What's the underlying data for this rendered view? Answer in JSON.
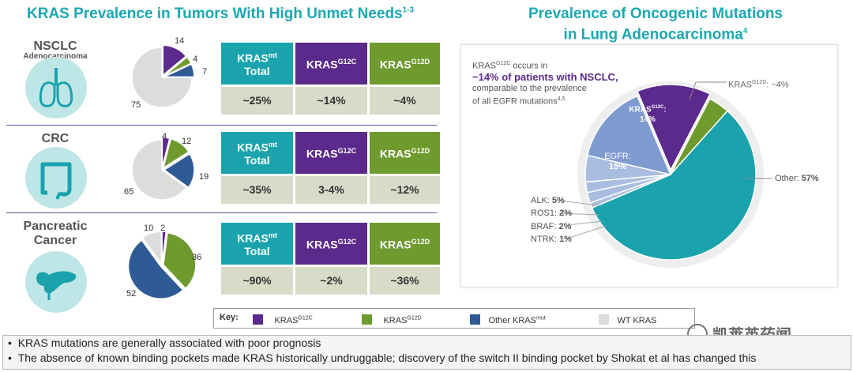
{
  "left_title": "KRAS Prevalence in Tumors With High Unmet Needs",
  "left_title_ref": "1-3",
  "right_title_line1": "Prevalence of Oncogenic Mutations",
  "right_title_line2": "in Lung Adenocarcinoma",
  "right_title_ref": "4",
  "rows": [
    {
      "label": "NSCLC",
      "sublabel": "Adenocarcinoma",
      "total": "~25%",
      "g12c": "~14%",
      "g12d": "~4%"
    },
    {
      "label": "CRC",
      "sublabel": "",
      "total": "~35%",
      "g12c": "3-4%",
      "g12d": "~12%"
    },
    {
      "label": "Pancreatic",
      "label2": "Cancer",
      "sublabel": "",
      "total": "~90%",
      "g12c": "~2%",
      "g12d": "~36%"
    }
  ],
  "headers": {
    "kras": "KRAS",
    "mt": "mt",
    "total": "Total",
    "g12c": "G12C",
    "g12d": "G12D"
  },
  "right_note": {
    "line1_pre": "KRAS",
    "line1_sup": "G12C",
    "line1_post": " occurs in",
    "line2": "~14% of patients with NSCLC,",
    "line3": "comparable to the prevalence",
    "line4": "of all EGFR mutations",
    "line4_ref": "4,5"
  },
  "lung_labels": {
    "g12d_pre": "KRAS",
    "g12d_sup": "G12D",
    "g12d_post": ": ~4%",
    "g12c_pre": "KRAS",
    "g12c_sup": "G12C",
    "g12c_post": ":",
    "g12c_val": "14%",
    "egfr": "EGFR:",
    "egfr_val": "15%",
    "other": "Other:",
    "other_val": "57%",
    "alk": "ALK:",
    "alk_val": "5%",
    "ros1": "ROS1:",
    "ros1_val": "2%",
    "braf": "BRAF:",
    "braf_val": "2%",
    "ntrk": "NTRK:",
    "ntrk_val": "1%"
  },
  "key": {
    "title": "Key:",
    "g12c_pre": "KRAS",
    "g12c_sup": "G12C",
    "g12d_pre": "KRAS",
    "g12d_sup": "G12D",
    "other_pre": "Other KRAS",
    "other_sup": "mut",
    "wt": "WT KRAS"
  },
  "bullets": [
    "KRAS mutations are generally associated with poor prognosis",
    "The absence of known binding pockets made KRAS historically undruggable; discovery of the switch II binding pocket by Shokat et al has changed this"
  ],
  "watermark": "凯莱英药闻",
  "colors": {
    "g12c": "#5b2a8c",
    "g12d": "#6e9a2e",
    "other_mut": "#2e5a95",
    "wt": "#dcdcdc",
    "egfr": "#7d9bcf",
    "minor": "#a9bde0",
    "lung_other": "#1aa3ad"
  },
  "chart_data": [
    {
      "type": "pie",
      "title": "NSCLC",
      "labels": [
        "KRAS G12C",
        "KRAS G12D",
        "Other KRAS mut",
        "WT KRAS"
      ],
      "values": [
        14,
        4,
        7,
        75
      ]
    },
    {
      "type": "pie",
      "title": "CRC",
      "labels": [
        "KRAS G12C",
        "KRAS G12D",
        "Other KRAS mut",
        "WT KRAS"
      ],
      "values": [
        4,
        12,
        19,
        65
      ]
    },
    {
      "type": "pie",
      "title": "Pancreatic Cancer",
      "labels": [
        "KRAS G12C",
        "KRAS G12D",
        "Other KRAS mut",
        "WT KRAS"
      ],
      "values": [
        2,
        36,
        52,
        10
      ]
    },
    {
      "type": "pie",
      "title": "Prevalence of Oncogenic Mutations in Lung Adenocarcinoma",
      "labels": [
        "KRAS G12C",
        "KRAS G12D",
        "Other",
        "NTRK",
        "BRAF",
        "ROS1",
        "ALK",
        "EGFR"
      ],
      "values": [
        14,
        4,
        57,
        1,
        2,
        2,
        5,
        15
      ]
    }
  ]
}
